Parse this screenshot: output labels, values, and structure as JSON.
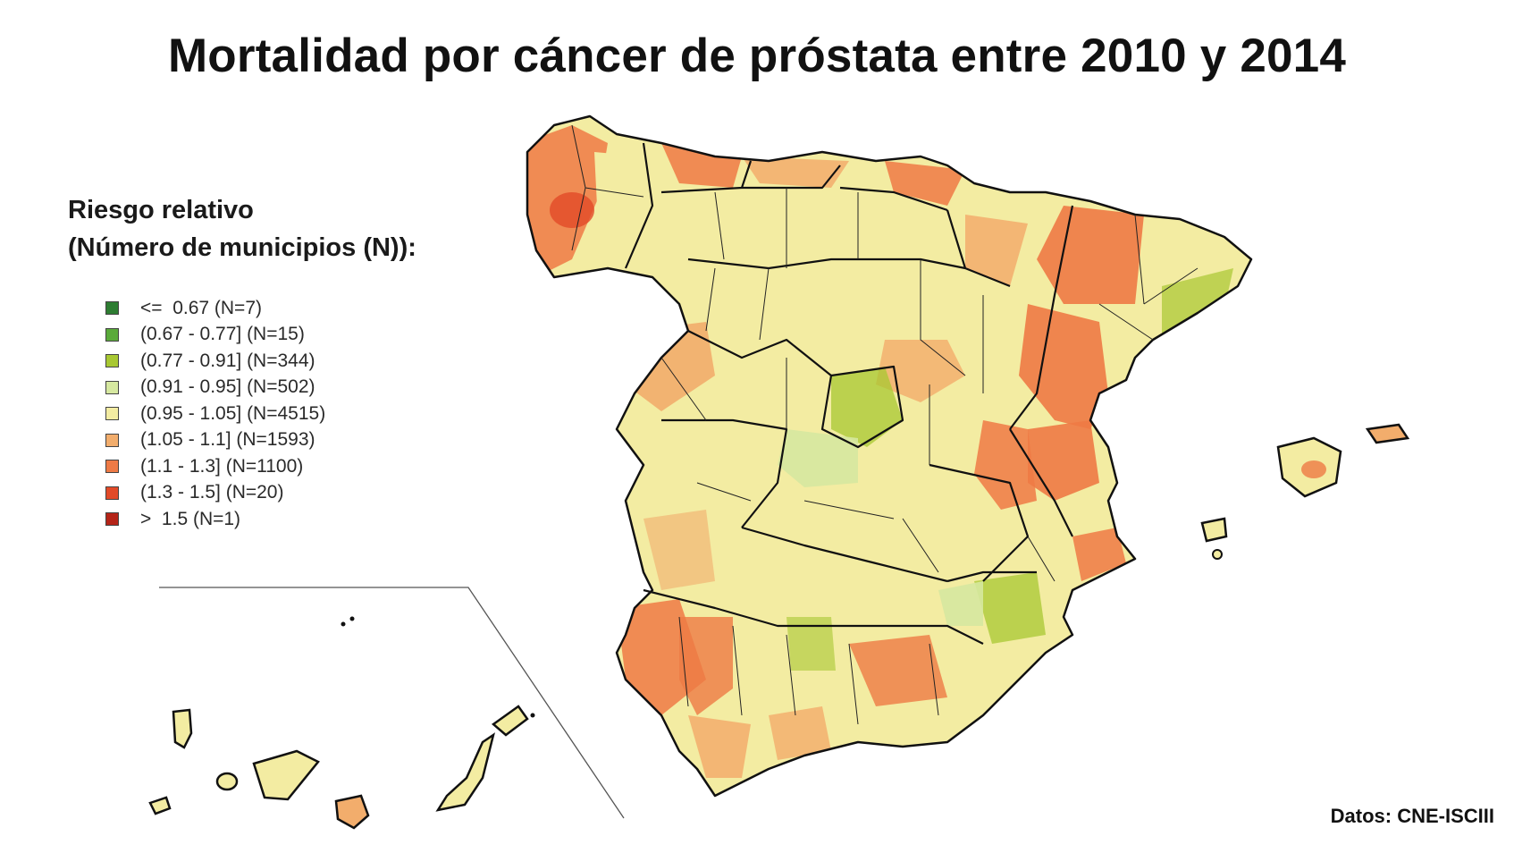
{
  "title": "Mortalidad por cáncer de próstata entre 2010 y 2014",
  "legend": {
    "title_line1": "Riesgo relativo",
    "title_line2": "(Número de municipios (N)):",
    "items": [
      {
        "label": "<=  0.67 (N=7)",
        "color": "#2e7d32"
      },
      {
        "label": "(0.67 - 0.77] (N=15)",
        "color": "#5aaa3a"
      },
      {
        "label": "(0.77 - 0.91] (N=344)",
        "color": "#a8c832"
      },
      {
        "label": "(0.91 - 0.95] (N=502)",
        "color": "#d6e8a0"
      },
      {
        "label": "(0.95 - 1.05] (N=4515)",
        "color": "#f3eca2"
      },
      {
        "label": "(1.05 - 1.1] (N=1593)",
        "color": "#f2ad6c"
      },
      {
        "label": ">(1.1 - 1.3] (N=1100)",
        "color": "#ee7a45"
      },
      {
        "label": "(1.3 - 1.5] (N=20)",
        "color": "#e24a28"
      },
      {
        "label": ">  1.5 (N=1)",
        "color": "#b52418"
      }
    ]
  },
  "source": "Datos: CNE-ISCIII"
}
